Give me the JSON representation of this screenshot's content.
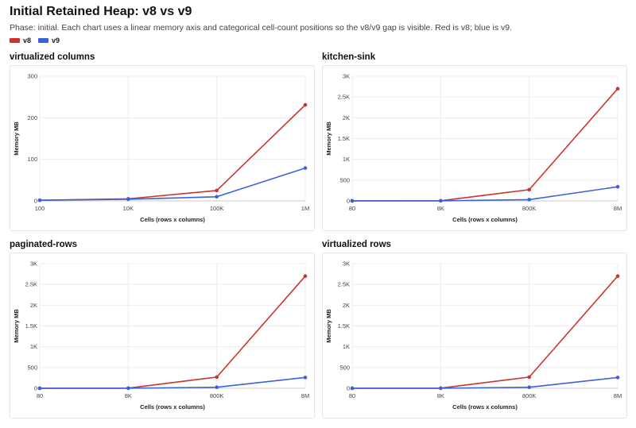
{
  "header": {
    "title": "Initial Retained Heap: v8 vs v9",
    "subtitle": "Phase: initial. Each chart uses a linear memory axis and categorical cell-count positions so the v8/v9 gap is visible. Red is v8; blue is v9."
  },
  "legend": [
    {
      "name": "v8",
      "color": "#c8352f"
    },
    {
      "name": "v9",
      "color": "#3a63d8"
    }
  ],
  "chart_data": [
    {
      "type": "line",
      "title": "virtualized columns",
      "xlabel": "Cells (rows x columns)",
      "ylabel": "Memory MB",
      "categories": [
        "100",
        "10K",
        "100K",
        "1M"
      ],
      "ylim": [
        0,
        300
      ],
      "yticks": [
        0,
        100,
        200,
        300
      ],
      "ytick_labels": [
        "0",
        "100",
        "200",
        "300"
      ],
      "grid": true,
      "series": [
        {
          "name": "v8",
          "color": "#c8352f",
          "values": [
            1.5,
            5,
            25,
            231
          ]
        },
        {
          "name": "v9",
          "color": "#3a63d8",
          "values": [
            1.5,
            4,
            10,
            79
          ]
        }
      ]
    },
    {
      "type": "line",
      "title": "kitchen-sink",
      "xlabel": "Cells (rows x columns)",
      "ylabel": "Memory MB",
      "categories": [
        "80",
        "8K",
        "800K",
        "8M"
      ],
      "ylim": [
        0,
        3000
      ],
      "yticks": [
        0,
        500,
        1000,
        1500,
        2000,
        2500,
        3000
      ],
      "ytick_labels": [
        "0",
        "500",
        "1K",
        "1.5K",
        "2K",
        "2.5K",
        "3K"
      ],
      "grid": true,
      "series": [
        {
          "name": "v8",
          "color": "#c8352f",
          "values": [
            1,
            3,
            270,
            2700
          ]
        },
        {
          "name": "v9",
          "color": "#3a63d8",
          "values": [
            1,
            2,
            30,
            340
          ]
        }
      ]
    },
    {
      "type": "line",
      "title": "paginated-rows",
      "xlabel": "Cells (rows x columns)",
      "ylabel": "Memory MB",
      "categories": [
        "80",
        "8K",
        "800K",
        "8M"
      ],
      "ylim": [
        0,
        3000
      ],
      "yticks": [
        0,
        500,
        1000,
        1500,
        2000,
        2500,
        3000
      ],
      "ytick_labels": [
        "0",
        "500",
        "1K",
        "1.5K",
        "2K",
        "2.5K",
        "3K"
      ],
      "grid": true,
      "series": [
        {
          "name": "v8",
          "color": "#c8352f",
          "values": [
            1,
            3,
            270,
            2700
          ]
        },
        {
          "name": "v9",
          "color": "#3a63d8",
          "values": [
            1,
            2,
            25,
            260
          ]
        }
      ]
    },
    {
      "type": "line",
      "title": "virtualized rows",
      "xlabel": "Cells (rows x columns)",
      "ylabel": "Memory MB",
      "categories": [
        "80",
        "8K",
        "800K",
        "8M"
      ],
      "ylim": [
        0,
        3000
      ],
      "yticks": [
        0,
        500,
        1000,
        1500,
        2000,
        2500,
        3000
      ],
      "ytick_labels": [
        "0",
        "500",
        "1K",
        "1.5K",
        "2K",
        "2.5K",
        "3K"
      ],
      "grid": true,
      "series": [
        {
          "name": "v8",
          "color": "#c8352f",
          "values": [
            1,
            3,
            270,
            2700
          ]
        },
        {
          "name": "v9",
          "color": "#3a63d8",
          "values": [
            1,
            2,
            25,
            260
          ]
        }
      ]
    }
  ]
}
